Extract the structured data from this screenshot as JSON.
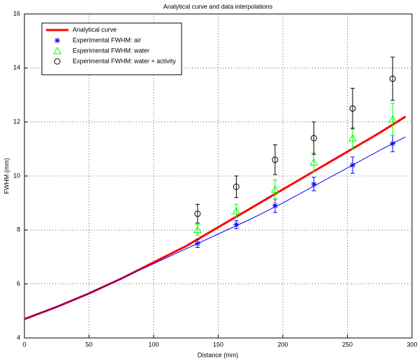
{
  "chart_data": {
    "type": "scatter",
    "title": "Analytical curve and  data interpolations",
    "x_label": "Distance (mm)",
    "y_label": "FWHM (mm)",
    "xlim": [
      0,
      300
    ],
    "xticks": [
      0,
      50,
      100,
      150,
      200,
      250,
      300
    ],
    "ylim": [
      4,
      16
    ],
    "yticks": [
      4,
      6,
      8,
      10,
      12,
      14,
      16
    ],
    "grid": true,
    "legend": "upper left",
    "series": [
      {
        "name": "Analytical curve",
        "type": "line",
        "color": "#ff0000",
        "x": [
          0,
          25,
          50,
          75,
          100,
          125,
          150,
          175,
          200,
          225,
          250,
          275,
          295
        ],
        "values": [
          4.7,
          5.15,
          5.65,
          6.2,
          6.8,
          7.4,
          8.1,
          8.8,
          9.5,
          10.2,
          10.9,
          11.6,
          12.2
        ]
      },
      {
        "name": "Experimental FWHM: air",
        "type": "scatter",
        "marker": "star",
        "color": "#0000ff",
        "x": [
          134,
          164,
          194,
          224,
          254,
          285
        ],
        "values": [
          7.5,
          8.2,
          8.9,
          9.7,
          10.4,
          11.2
        ],
        "errors": [
          0.15,
          0.15,
          0.25,
          0.25,
          0.3,
          0.3
        ]
      },
      {
        "name": "Experimental FWHM: water",
        "type": "scatter",
        "marker": "triangle",
        "color": "#00ff00",
        "x": [
          134,
          164,
          194,
          224,
          254,
          285
        ],
        "values": [
          8.0,
          8.7,
          9.5,
          10.5,
          11.4,
          12.1
        ],
        "errors": [
          0.2,
          0.25,
          0.35,
          0.35,
          0.4,
          0.6
        ]
      },
      {
        "name": "Experimental FWHM: water + activity",
        "type": "scatter",
        "marker": "circle",
        "color": "#000000",
        "x": [
          134,
          164,
          194,
          224,
          254,
          285
        ],
        "values": [
          8.6,
          9.6,
          10.6,
          11.4,
          12.5,
          13.6
        ],
        "errors": [
          0.35,
          0.4,
          0.55,
          0.6,
          0.75,
          0.8
        ]
      },
      {
        "type": "line",
        "color": "#0000ff",
        "x": [
          0,
          25,
          50,
          75,
          100,
          125,
          150,
          175,
          200,
          225,
          250,
          275,
          295
        ],
        "values": [
          4.7,
          5.15,
          5.65,
          6.2,
          6.75,
          7.3,
          7.85,
          8.4,
          9.0,
          9.65,
          10.3,
          10.95,
          11.45
        ]
      }
    ]
  }
}
